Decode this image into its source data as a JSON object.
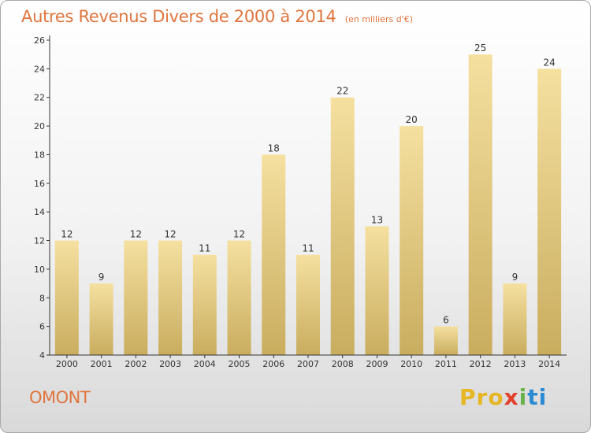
{
  "header": {
    "title": "Autres Revenus Divers de 2000 à 2014",
    "unit": "(en milliers d'€)"
  },
  "footer": {
    "commune": "OMONT",
    "brand_parts": [
      "Pro",
      "x",
      "i",
      "ti"
    ]
  },
  "colors": {
    "title": "#e0753d",
    "bar_top": "#f5e0a0",
    "bar_bottom": "#c9ad5f",
    "axis": "#333333"
  },
  "chart_data": {
    "type": "bar",
    "title": "Autres Revenus Divers de 2000 à 2014",
    "subtitle": "(en milliers d'€)",
    "categories": [
      "2000",
      "2001",
      "2002",
      "2003",
      "2004",
      "2005",
      "2006",
      "2007",
      "2008",
      "2009",
      "2010",
      "2011",
      "2012",
      "2013",
      "2014"
    ],
    "values": [
      12,
      9,
      12,
      12,
      11,
      12,
      18,
      11,
      22,
      13,
      20,
      6,
      25,
      9,
      24
    ],
    "ylim": [
      4,
      26
    ],
    "yticks": [
      4,
      6,
      8,
      10,
      12,
      14,
      16,
      18,
      20,
      22,
      24,
      26
    ],
    "grid": false,
    "legend": "none"
  }
}
